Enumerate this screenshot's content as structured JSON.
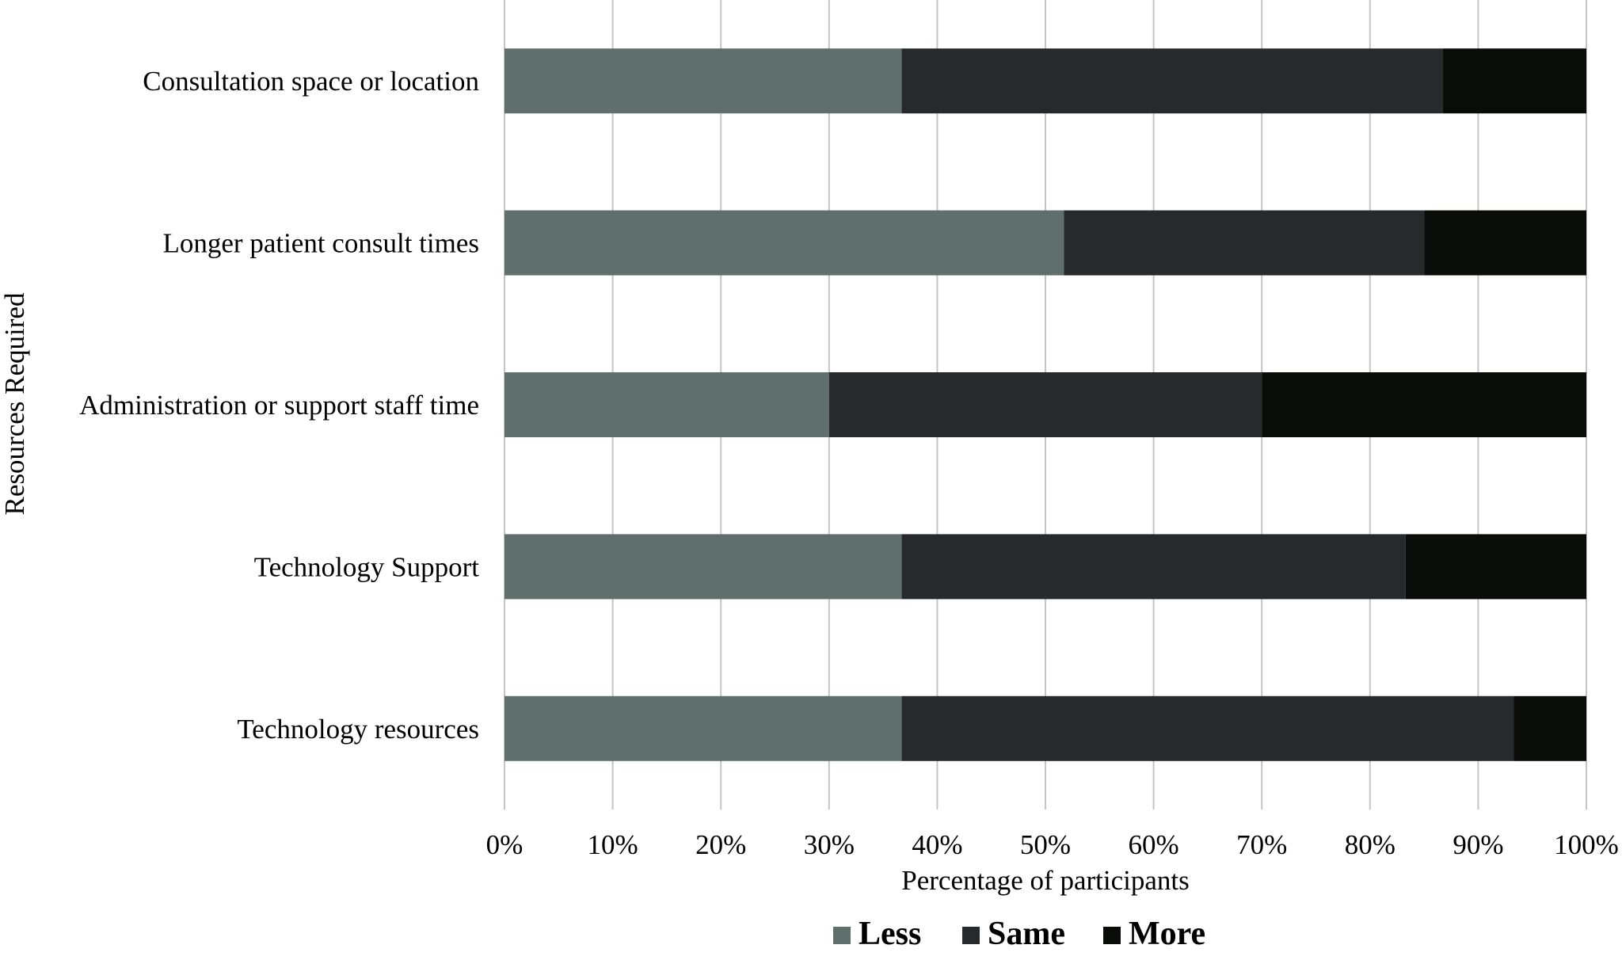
{
  "chart_data": {
    "type": "bar",
    "orientation": "horizontal",
    "stacked": "percent",
    "title": "",
    "xlabel": "Percentage of participants",
    "ylabel": "Resources Required",
    "xlim": [
      0,
      100
    ],
    "x_ticks": [
      "0%",
      "10%",
      "20%",
      "30%",
      "40%",
      "50%",
      "60%",
      "70%",
      "80%",
      "90%",
      "100%"
    ],
    "categories": [
      "Consultation space or location",
      "Longer patient consult times",
      "Administration or support staff time",
      "Technology Support",
      "Technology resources"
    ],
    "series": [
      {
        "name": "Less",
        "color": "#5f6f6c",
        "values": [
          36.7,
          51.7,
          30.0,
          36.7,
          36.7
        ]
      },
      {
        "name": "Same",
        "color": "#272a2d",
        "values": [
          50.0,
          33.3,
          40.0,
          46.6,
          56.6
        ]
      },
      {
        "name": "More",
        "color": "#0a0c0a",
        "values": [
          13.3,
          15.0,
          30.0,
          16.7,
          6.7
        ]
      }
    ],
    "grid": true,
    "legend": "bottom"
  }
}
